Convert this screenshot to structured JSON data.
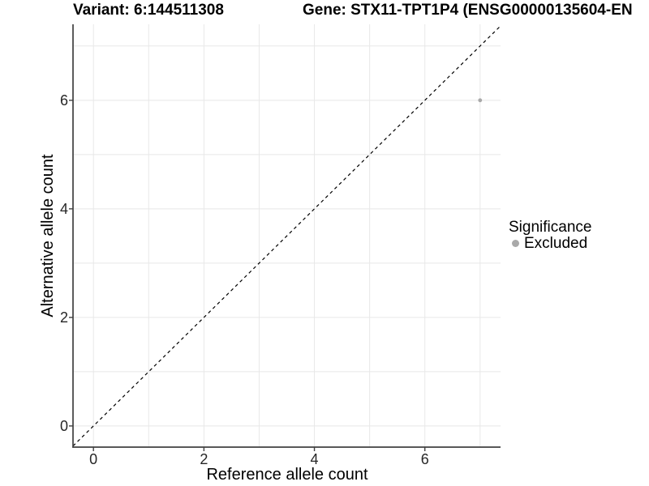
{
  "titles": {
    "variant": "Variant: 6:144511308",
    "gene": "Gene: STX11-TPT1P4 (ENSG00000135604-EN"
  },
  "axes": {
    "x": {
      "label": "Reference allele count"
    },
    "y": {
      "label": "Alternative allele count"
    }
  },
  "legend": {
    "title": "Significance",
    "items": [
      {
        "label": "Excluded",
        "color": "#a9a9a9"
      }
    ]
  },
  "colors": {
    "background": "#ffffff",
    "grid": "#e8e8e8",
    "axis": "#404040",
    "tick_text": "#262626",
    "title_text": "#000000",
    "identity_line": "#000000",
    "point": "#a9a9a9"
  },
  "chart_data": {
    "type": "scatter",
    "title": "Variant: 6:144511308 | Gene: STX11-TPT1P4 (ENSG00000135604-EN",
    "xlabel": "Reference allele count",
    "ylabel": "Alternative allele count",
    "xlim": [
      -0.37,
      7.37
    ],
    "ylim": [
      -0.39,
      7.4
    ],
    "xticks": [
      0,
      2,
      4,
      6
    ],
    "yticks": [
      0,
      2,
      4,
      6
    ],
    "grid_every": 1,
    "grid": "on",
    "legend_position": "right",
    "series": [
      {
        "name": "Excluded",
        "points": [
          {
            "x": 7,
            "y": 6
          }
        ]
      }
    ],
    "reference_line": {
      "kind": "identity y=x",
      "style": "dashed"
    }
  }
}
